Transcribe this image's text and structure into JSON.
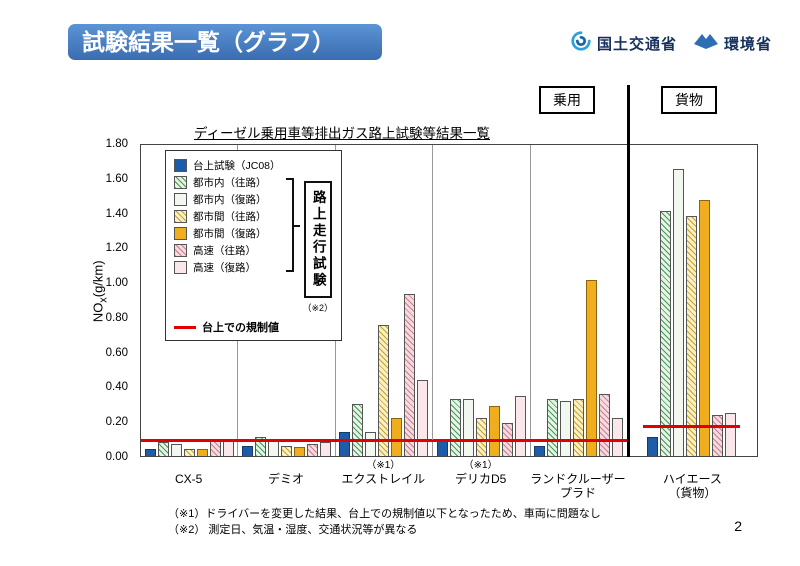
{
  "page": {
    "title": "試験結果一覧（グラフ）",
    "page_number": "2",
    "logos": {
      "mlit": "国土交通省",
      "moe": "環境省"
    },
    "section_labels": {
      "passenger": "乗用",
      "cargo": "貨物"
    },
    "footnotes": [
      "（※1）ドライバーを変更した結果、台上での規制値以下となったため、車両に問題なし",
      "（※2） 測定日、気温・湿度、交通状況等が異なる"
    ]
  },
  "chart_data": {
    "type": "bar",
    "title": "ディーゼル乗用車等排出ガス路上試験等結果一覧",
    "ylabel": {
      "pre": "NO",
      "sub": "x",
      "post": "(g/km)"
    },
    "ylim": [
      0,
      1.8
    ],
    "ytick_step": 0.2,
    "categories": [
      {
        "lines": [
          "CX-5"
        ],
        "note": ""
      },
      {
        "lines": [
          "デミオ"
        ],
        "note": ""
      },
      {
        "lines": [
          "エクストレイル"
        ],
        "note": "（※1）"
      },
      {
        "lines": [
          "デリカD5"
        ],
        "note": "（※1）"
      },
      {
        "lines": [
          "ランドクルーザー",
          "プラド"
        ],
        "note": ""
      },
      {
        "lines": [
          "ハイエース",
          "（貨物）"
        ],
        "note": ""
      }
    ],
    "series": [
      {
        "name": "台上試験（JC08）",
        "fill": "#1d5ca8",
        "hatch": false,
        "values": [
          0.04,
          0.06,
          0.14,
          0.1,
          0.06,
          0.11
        ]
      },
      {
        "name": "都市内（往路）",
        "fill": "#e8f3e8",
        "hatch": true,
        "hatch_color": "#3f9b4f",
        "values": [
          0.08,
          0.11,
          0.3,
          0.33,
          0.33,
          1.42
        ]
      },
      {
        "name": "都市内（復路）",
        "fill": "#f2f8f0",
        "hatch": false,
        "values": [
          0.07,
          0.09,
          0.14,
          0.33,
          0.32,
          1.66
        ]
      },
      {
        "name": "都市間（往路）",
        "fill": "#faf0c4",
        "hatch": true,
        "hatch_color": "#c7a12e",
        "values": [
          0.04,
          0.06,
          0.76,
          0.22,
          0.33,
          1.39
        ]
      },
      {
        "name": "都市間（復路）",
        "fill": "#f0ad1e",
        "hatch": false,
        "values": [
          0.04,
          0.05,
          0.22,
          0.29,
          1.02,
          1.48
        ]
      },
      {
        "name": "高速（往路）",
        "fill": "#f6dadf",
        "hatch": true,
        "hatch_color": "#c97f8e",
        "values": [
          0.09,
          0.07,
          0.94,
          0.19,
          0.36,
          0.24
        ]
      },
      {
        "name": "高速（復路）",
        "fill": "#f9e7ea",
        "hatch": false,
        "values": [
          0.1,
          0.08,
          0.44,
          0.35,
          0.22,
          0.25
        ]
      }
    ],
    "regulation": {
      "label": "台上での規制値",
      "color": "#e00000",
      "dashed_value": 0.08,
      "per_group": [
        0.08,
        0.08,
        0.08,
        0.08,
        0.08,
        0.16
      ]
    },
    "road_test": {
      "label": "路上走行試験",
      "note": "（※2）"
    }
  }
}
